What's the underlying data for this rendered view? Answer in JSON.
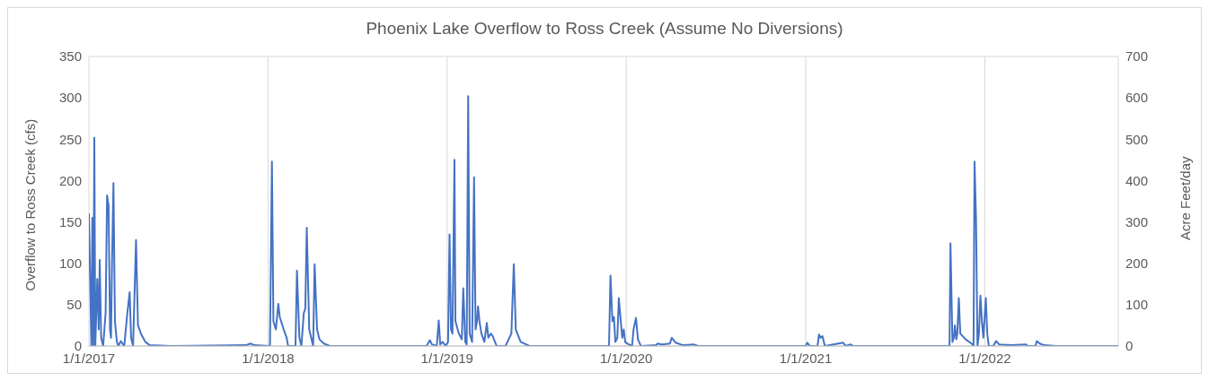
{
  "chart_data": {
    "type": "line",
    "title": "Phoenix Lake Overflow to Ross Creek (Assume No Diversions)",
    "ylabel": "Overflow to Ross Creek (cfs)",
    "y2label": "Acre Feet/day",
    "x": [
      "2017-01-01",
      "2017-01-06",
      "2017-01-08",
      "2017-01-10",
      "2017-01-12",
      "2017-01-14",
      "2017-01-18",
      "2017-01-21",
      "2017-01-23",
      "2017-01-26",
      "2017-01-30",
      "2017-02-04",
      "2017-02-07",
      "2017-02-10",
      "2017-02-13",
      "2017-02-15",
      "2017-02-17",
      "2017-02-20",
      "2017-02-23",
      "2017-02-27",
      "2017-03-02",
      "2017-03-07",
      "2017-03-14",
      "2017-03-20",
      "2017-03-25",
      "2017-03-28",
      "2017-04-01",
      "2017-04-07",
      "2017-04-11",
      "2017-04-17",
      "2017-04-26",
      "2017-05-05",
      "2017-06-17",
      "2017-11-17",
      "2017-11-26",
      "2017-12-05",
      "2018-01-05",
      "2018-01-09",
      "2018-01-12",
      "2018-01-17",
      "2018-01-22",
      "2018-01-25",
      "2018-02-02",
      "2018-02-08",
      "2018-02-11",
      "2018-02-26",
      "2018-03-01",
      "2018-03-06",
      "2018-03-10",
      "2018-03-15",
      "2018-03-18",
      "2018-03-21",
      "2018-03-26",
      "2018-03-30",
      "2018-04-03",
      "2018-04-06",
      "2018-04-11",
      "2018-04-16",
      "2018-04-25",
      "2018-05-07",
      "2018-11-20",
      "2018-11-27",
      "2018-12-01",
      "2018-12-11",
      "2018-12-15",
      "2018-12-18",
      "2018-12-23",
      "2018-12-29",
      "2019-01-03",
      "2019-01-06",
      "2019-01-09",
      "2019-01-12",
      "2019-01-16",
      "2019-01-18",
      "2019-01-25",
      "2019-01-31",
      "2019-02-03",
      "2019-02-07",
      "2019-02-10",
      "2019-02-13",
      "2019-02-16",
      "2019-02-21",
      "2019-02-25",
      "2019-02-28",
      "2019-03-03",
      "2019-03-05",
      "2019-03-08",
      "2019-03-12",
      "2019-03-18",
      "2019-03-23",
      "2019-03-26",
      "2019-03-31",
      "2019-04-04",
      "2019-04-12",
      "2019-04-30",
      "2019-05-12",
      "2019-05-17",
      "2019-05-21",
      "2019-05-31",
      "2019-06-18",
      "2019-11-27",
      "2019-11-30",
      "2019-12-04",
      "2019-12-07",
      "2019-12-10",
      "2019-12-14",
      "2019-12-17",
      "2019-12-21",
      "2019-12-24",
      "2019-12-27",
      "2019-12-30",
      "2020-01-03",
      "2020-01-13",
      "2020-01-16",
      "2020-01-21",
      "2020-01-25",
      "2020-01-31",
      "2020-03-02",
      "2020-03-05",
      "2020-03-14",
      "2020-03-30",
      "2020-04-03",
      "2020-04-11",
      "2020-04-26",
      "2020-05-17",
      "2020-05-27",
      "2021-01-01",
      "2021-01-04",
      "2021-01-10",
      "2021-01-25",
      "2021-01-28",
      "2021-01-31",
      "2021-02-04",
      "2021-02-09",
      "2021-03-18",
      "2021-03-24",
      "2021-04-02",
      "2021-04-08",
      "2021-10-21",
      "2021-10-23",
      "2021-10-27",
      "2021-10-30",
      "2021-11-01",
      "2021-11-04",
      "2021-11-06",
      "2021-11-09",
      "2021-11-12",
      "2021-11-23",
      "2021-12-05",
      "2021-12-09",
      "2021-12-11",
      "2021-12-14",
      "2021-12-17",
      "2021-12-20",
      "2021-12-23",
      "2021-12-26",
      "2021-12-29",
      "2022-01-03",
      "2022-01-06",
      "2022-01-09",
      "2022-01-18",
      "2022-01-24",
      "2022-01-30",
      "2022-02-24",
      "2022-03-26",
      "2022-03-29",
      "2022-04-14",
      "2022-04-17",
      "2022-04-23",
      "2022-05-02",
      "2022-05-27",
      "2022-09-30"
    ],
    "series": [
      {
        "color": "#4472c4",
        "values": [
          160,
          0,
          155,
          0,
          252,
          0,
          81,
          20,
          104,
          10,
          0,
          40,
          182,
          170,
          20,
          10,
          98,
          197,
          30,
          5,
          0,
          6,
          0,
          38,
          65,
          10,
          0,
          128,
          25,
          15,
          5,
          1,
          0,
          1,
          3,
          1,
          0,
          223,
          30,
          20,
          51,
          35,
          20,
          10,
          0,
          0,
          91,
          10,
          0,
          40,
          45,
          143,
          20,
          10,
          0,
          99,
          20,
          8,
          3,
          0,
          0,
          7,
          2,
          0,
          31,
          2,
          5,
          0,
          5,
          135,
          20,
          15,
          225,
          30,
          15,
          8,
          70,
          5,
          2,
          302,
          15,
          5,
          204,
          20,
          30,
          48,
          30,
          15,
          5,
          28,
          10,
          15,
          12,
          0,
          0,
          15,
          99,
          20,
          5,
          0,
          0,
          85,
          30,
          35,
          5,
          10,
          58,
          30,
          10,
          20,
          5,
          3,
          0,
          20,
          34,
          8,
          0,
          1,
          3,
          2,
          3,
          10,
          4,
          1,
          2,
          0,
          0,
          4,
          0,
          0,
          14,
          10,
          12,
          0,
          4,
          0,
          2,
          0,
          0,
          124,
          5,
          10,
          25,
          8,
          15,
          58,
          15,
          8,
          3,
          0,
          223,
          156,
          0,
          15,
          61,
          30,
          10,
          58,
          15,
          0,
          0,
          6,
          2,
          1,
          2,
          0,
          0,
          6,
          3,
          1,
          0,
          0
        ]
      }
    ],
    "xlim": [
      "2017-01-01",
      "2022-09-30"
    ],
    "xticks": [
      {
        "value": "2017-01-01",
        "label": "1/1/2017"
      },
      {
        "value": "2018-01-01",
        "label": "1/1/2018"
      },
      {
        "value": "2019-01-01",
        "label": "1/1/2019"
      },
      {
        "value": "2020-01-01",
        "label": "1/1/2020"
      },
      {
        "value": "2021-01-01",
        "label": "1/1/2021"
      },
      {
        "value": "2022-01-01",
        "label": "1/1/2022"
      }
    ],
    "ylim": [
      0,
      350
    ],
    "yticks": [
      0,
      50,
      100,
      150,
      200,
      250,
      300,
      350
    ],
    "y2lim": [
      0,
      700
    ],
    "y2ticks": [
      0,
      100,
      200,
      300,
      400,
      500,
      600,
      700
    ],
    "grid": true,
    "marker": "none",
    "line_style": "solid"
  }
}
